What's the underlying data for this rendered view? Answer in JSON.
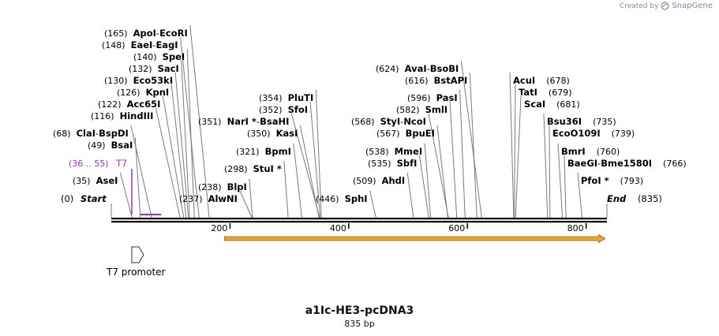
{
  "credit": {
    "prefix": "Created by",
    "brand": "SnapGene"
  },
  "plasmid": {
    "name": "a1Ic-HE3-pcDNA3",
    "length_text": "835 bp",
    "length": 835
  },
  "ends": [
    {
      "label": "Start",
      "pos_label": "(0)",
      "pos": 0,
      "side": "left"
    },
    {
      "label": "End",
      "pos_label": "(835)",
      "pos": 835,
      "side": "right"
    }
  ],
  "sites": [
    {
      "names": [
        "ApoI",
        "EcoRI"
      ],
      "pos_label": "(165)",
      "pos": 165
    },
    {
      "names": [
        "EaeI",
        "EagI"
      ],
      "pos_label": "(148)",
      "pos": 148
    },
    {
      "names": [
        "SpeI"
      ],
      "pos_label": "(140)",
      "pos": 140
    },
    {
      "names": [
        "SacI"
      ],
      "pos_label": "(132)",
      "pos": 132
    },
    {
      "names": [
        "Eco53kI"
      ],
      "pos_label": "(130)",
      "pos": 130
    },
    {
      "names": [
        "KpnI"
      ],
      "pos_label": "(126)",
      "pos": 126
    },
    {
      "names": [
        "Acc65I"
      ],
      "pos_label": "(122)",
      "pos": 122
    },
    {
      "names": [
        "HindIII"
      ],
      "pos_label": "(116)",
      "pos": 116
    },
    {
      "names": [
        "ClaI",
        "BspDI"
      ],
      "pos_label": "(68)",
      "pos": 68
    },
    {
      "names": [
        "BsaI"
      ],
      "pos_label": "(49)",
      "pos": 49
    },
    {
      "names": [
        "AseI"
      ],
      "pos_label": "(35)",
      "pos": 35
    },
    {
      "names": [
        "PluTI"
      ],
      "pos_label": "(354)",
      "pos": 354
    },
    {
      "names": [
        "SfoI"
      ],
      "pos_label": "(352)",
      "pos": 352
    },
    {
      "names": [
        "NarI *",
        "BsaHI"
      ],
      "pos_label": "(351)",
      "pos": 351
    },
    {
      "names": [
        "KasI"
      ],
      "pos_label": "(350)",
      "pos": 350
    },
    {
      "names": [
        "BpmI"
      ],
      "pos_label": "(321)",
      "pos": 321
    },
    {
      "names": [
        "StuI *"
      ],
      "pos_label": "(298)",
      "pos": 298
    },
    {
      "names": [
        "BlpI"
      ],
      "pos_label": "(238)",
      "pos": 238
    },
    {
      "names": [
        "AlwNI"
      ],
      "pos_label": "(237)",
      "pos": 237
    },
    {
      "names": [
        "SphI"
      ],
      "pos_label": "(446)",
      "pos": 446
    },
    {
      "names": [
        "AvaI",
        "BsoBI"
      ],
      "pos_label": "(624)",
      "pos": 624
    },
    {
      "names": [
        "BstAPI"
      ],
      "pos_label": "(616)",
      "pos": 616
    },
    {
      "names": [
        "PasI"
      ],
      "pos_label": "(596)",
      "pos": 596
    },
    {
      "names": [
        "SmlI"
      ],
      "pos_label": "(582)",
      "pos": 582
    },
    {
      "names": [
        "StyI",
        "NcoI"
      ],
      "pos_label": "(568)",
      "pos": 568
    },
    {
      "names": [
        "BpuEI"
      ],
      "pos_label": "(567)",
      "pos": 567
    },
    {
      "names": [
        "MmeI"
      ],
      "pos_label": "(538)",
      "pos": 538
    },
    {
      "names": [
        "SbfI"
      ],
      "pos_label": "(535)",
      "pos": 535
    },
    {
      "names": [
        "AhdI"
      ],
      "pos_label": "(509)",
      "pos": 509
    },
    {
      "names": [
        "AcuI"
      ],
      "pos_label": "(678)",
      "pos": 678
    },
    {
      "names": [
        "TatI"
      ],
      "pos_label": "(679)",
      "pos": 679
    },
    {
      "names": [
        "ScaI"
      ],
      "pos_label": "(681)",
      "pos": 681
    },
    {
      "names": [
        "Bsu36I"
      ],
      "pos_label": "(735)",
      "pos": 735
    },
    {
      "names": [
        "EcoO109I"
      ],
      "pos_label": "(739)",
      "pos": 739
    },
    {
      "names": [
        "BmrI"
      ],
      "pos_label": "(760)",
      "pos": 760
    },
    {
      "names": [
        "BaeGI",
        "Bme1580I"
      ],
      "pos_label": "(766)",
      "pos": 766
    },
    {
      "names": [
        "PfoI *"
      ],
      "pos_label": "(793)",
      "pos": 793
    }
  ],
  "primer": {
    "label": "T7",
    "pos_label": "(36 .. 55)",
    "start": 36,
    "end": 55,
    "color": "#9b30d9"
  },
  "ruler": {
    "ticks": [
      200,
      400,
      600,
      800
    ]
  },
  "features": [
    {
      "type": "orf",
      "start": 191,
      "end": 832,
      "color": "#e8a735",
      "outline": "#8a5a00"
    },
    {
      "type": "promoter",
      "label": "T7 promoter",
      "pos": 45
    }
  ]
}
